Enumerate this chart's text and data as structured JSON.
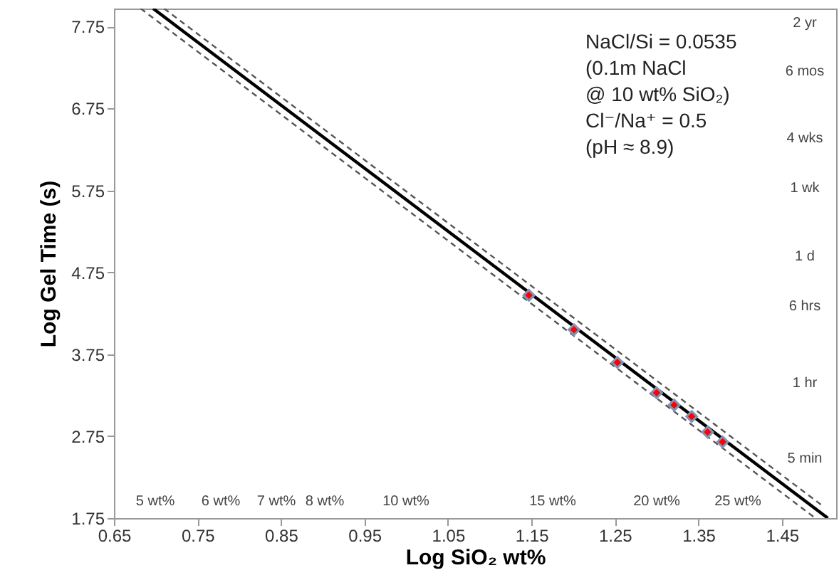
{
  "chart_data": {
    "type": "scatter",
    "xlabel": "Log SiO₂ wt%",
    "ylabel": "Log Gel Time (s)",
    "xlim": [
      0.65,
      1.515
    ],
    "ylim": [
      1.75,
      7.97
    ],
    "xticks": [
      0.65,
      0.75,
      0.85,
      0.95,
      1.05,
      1.15,
      1.25,
      1.35,
      1.45
    ],
    "yticks": [
      1.75,
      2.75,
      3.75,
      4.75,
      5.75,
      6.75,
      7.75
    ],
    "grid": false,
    "series": [
      {
        "type": "line",
        "color": "#555555",
        "line_style": "dashed",
        "x": [
          0.71,
          1.5
        ],
        "values": [
          7.97,
          1.89
        ]
      },
      {
        "type": "line",
        "color": "#555555",
        "line_style": "dashed",
        "x": [
          0.682,
          1.49
        ],
        "values": [
          7.97,
          1.75
        ]
      },
      {
        "type": "line",
        "color": "#000000",
        "line_style": "solid",
        "x": [
          0.697,
          1.505
        ],
        "values": [
          7.97,
          1.75
        ]
      },
      {
        "color": "#ff0000",
        "marker": "diamond",
        "x": [
          1.147,
          1.201,
          1.253,
          1.3,
          1.321,
          1.342,
          1.361,
          1.379
        ],
        "values": [
          4.47,
          4.05,
          3.65,
          3.28,
          3.13,
          2.99,
          2.8,
          2.68
        ]
      }
    ],
    "annotations": [
      "NaCl/Si = 0.0535",
      "(0.1m NaCl",
      "@ 10 wt% SiO₂)",
      "Cl⁻/Na⁺ = 0.5",
      "(pH ≈ 8.9)",
      "2 yr",
      "6 mos",
      "4 wks",
      "1 wk",
      "1 d",
      "6 hrs",
      "1 hr",
      "5 min",
      "5 wt%",
      "6 wt%",
      "7 wt%",
      "8 wt%",
      "10 wt%",
      "15 wt%",
      "20 wt%",
      "25 wt%"
    ]
  }
}
